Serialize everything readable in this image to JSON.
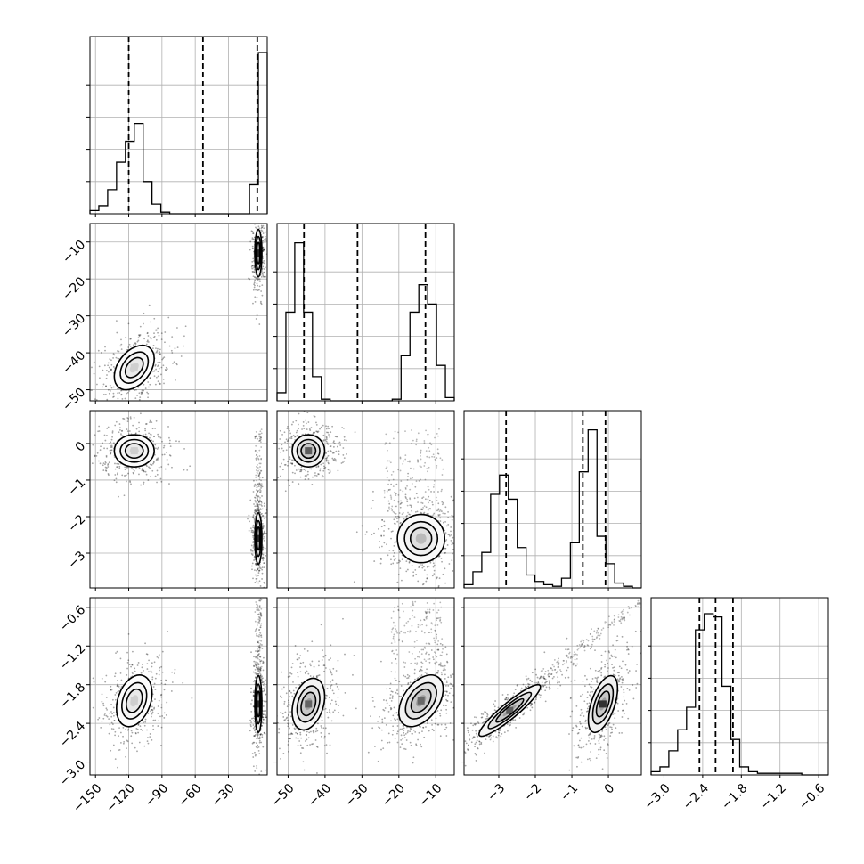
{
  "chart_data": {
    "type": "corner",
    "parameters": [
      {
        "range": [
          -155,
          5
        ],
        "ticks": [
          -150,
          -120,
          -90,
          -60,
          -30
        ],
        "tick_labels": [
          "−150",
          "−120",
          "−90",
          "−60",
          "−30"
        ],
        "quantiles": [
          -120,
          -53,
          -4
        ],
        "histogram": {
          "edges": [
            -155,
            -147,
            -139,
            -131,
            -123,
            -115,
            -107,
            -99,
            -91,
            -83,
            -75,
            -67,
            -59,
            -51,
            -43,
            -35,
            -27,
            -19,
            -11,
            -3,
            5
          ],
          "counts": [
            0.02,
            0.05,
            0.15,
            0.32,
            0.45,
            0.56,
            0.2,
            0.06,
            0.01,
            0,
            0,
            0,
            0,
            0,
            0,
            0,
            0,
            0,
            0.18,
            1.0
          ]
        }
      },
      {
        "range": [
          -53,
          -5
        ],
        "ticks": [
          -50,
          -40,
          -30,
          -20,
          -10
        ],
        "tick_labels": [
          "−50",
          "−40",
          "−30",
          "−20",
          "−10"
        ],
        "quantiles": [
          -45.7,
          -31.2,
          -12.8
        ],
        "histogram": {
          "edges": [
            -53,
            -50.6,
            -48.2,
            -45.8,
            -43.4,
            -41,
            -38.6,
            -36.2,
            -33.8,
            -31.4,
            -29,
            -26.6,
            -24.2,
            -21.8,
            -19.4,
            -17,
            -14.6,
            -12.2,
            -9.8,
            -7.4,
            -5
          ],
          "counts": [
            0.05,
            0.55,
            0.98,
            0.55,
            0.15,
            0.01,
            0,
            0,
            0,
            0,
            0,
            0,
            0,
            0.01,
            0.28,
            0.55,
            0.72,
            0.6,
            0.22,
            0.02
          ]
        }
      },
      {
        "range": [
          -3.95,
          0.9
        ],
        "ticks": [
          -3,
          -2,
          -1,
          0
        ],
        "tick_labels": [
          "−3",
          "−2",
          "−1",
          "0"
        ],
        "quantiles": [
          -2.8,
          -0.7,
          -0.08
        ],
        "histogram": {
          "edges": [
            -3.95,
            -3.7075,
            -3.465,
            -3.2225,
            -2.98,
            -2.7375,
            -2.495,
            -2.2525,
            -2.01,
            -1.7675,
            -1.525,
            -1.2825,
            -1.04,
            -0.7975,
            -0.555,
            -0.3125,
            -0.07,
            0.1725,
            0.415,
            0.6575,
            0.9
          ],
          "counts": [
            0.02,
            0.1,
            0.22,
            0.58,
            0.7,
            0.55,
            0.25,
            0.08,
            0.04,
            0.02,
            0.01,
            0.06,
            0.28,
            0.72,
            0.98,
            0.32,
            0.15,
            0.03,
            0.01,
            0
          ]
        }
      },
      {
        "range": [
          -3.2,
          -0.45
        ],
        "ticks": [
          -3.0,
          -2.4,
          -1.8,
          -1.2,
          -0.6
        ],
        "tick_labels": [
          "−3.0",
          "−2.4",
          "−1.8",
          "−1.2",
          "−0.6"
        ],
        "quantiles": [
          -2.45,
          -2.2,
          -1.93
        ],
        "histogram": {
          "edges": [
            -3.2,
            -3.0625,
            -2.925,
            -2.7875,
            -2.65,
            -2.5125,
            -2.375,
            -2.2375,
            -2.1,
            -1.9625,
            -1.825,
            -1.6875,
            -1.55,
            -1.4125,
            -1.275,
            -1.1375,
            -1.0,
            -0.8625,
            -0.725,
            -0.5875,
            -0.45
          ],
          "counts": [
            0.02,
            0.05,
            0.15,
            0.28,
            0.42,
            0.9,
            1.0,
            0.98,
            0.55,
            0.22,
            0.05,
            0.02,
            0.01,
            0.01,
            0.01,
            0.01,
            0.01,
            0,
            0,
            0
          ]
        }
      }
    ],
    "blobs": [
      {
        "row": 1,
        "col": 0,
        "cx": -115,
        "cy": -44,
        "sx": 9,
        "sy": 3,
        "rho": 0.4,
        "n": 420,
        "peak": 0.22
      },
      {
        "row": 1,
        "col": 0,
        "cx": -3,
        "cy": -13,
        "sx": 1.6,
        "sy": 3.2,
        "rho": 0.0,
        "n": 340,
        "peak": 1.0
      },
      {
        "row": 2,
        "col": 0,
        "cx": -115,
        "cy": -0.2,
        "sx": 9,
        "sy": 0.22,
        "rho": 0.0,
        "n": 420,
        "peak": 0.22
      },
      {
        "row": 2,
        "col": 0,
        "cx": -3,
        "cy": -2.6,
        "sx": 1.6,
        "sy": 0.35,
        "rho": 0.0,
        "n": 340,
        "peak": 1.0
      },
      {
        "row": 2,
        "col": 1,
        "cx": -44.5,
        "cy": -0.2,
        "sx": 2.2,
        "sy": 0.22,
        "rho": 0.0,
        "n": 420,
        "peak": 0.75
      },
      {
        "row": 2,
        "col": 1,
        "cx": -14,
        "cy": -2.6,
        "sx": 3.2,
        "sy": 0.33,
        "rho": 0.0,
        "n": 460,
        "peak": 0.32
      },
      {
        "row": 3,
        "col": 0,
        "cx": -115,
        "cy": -2.05,
        "sx": 8,
        "sy": 0.2,
        "rho": 0.3,
        "n": 420,
        "peak": 0.22
      },
      {
        "row": 3,
        "col": 0,
        "cx": -3,
        "cy": -2.1,
        "sx": 1.6,
        "sy": 0.22,
        "rho": 0.0,
        "n": 340,
        "peak": 1.0
      },
      {
        "row": 3,
        "col": 1,
        "cx": -44.5,
        "cy": -2.1,
        "sx": 2.2,
        "sy": 0.2,
        "rho": 0.3,
        "n": 420,
        "peak": 0.72
      },
      {
        "row": 3,
        "col": 1,
        "cx": -14,
        "cy": -2.05,
        "sx": 3.0,
        "sy": 0.2,
        "rho": 0.45,
        "n": 460,
        "peak": 0.7
      },
      {
        "row": 3,
        "col": 2,
        "cx": -2.7,
        "cy": -2.2,
        "sx": 0.42,
        "sy": 0.2,
        "rho": 0.92,
        "n": 460,
        "peak": 0.75
      },
      {
        "row": 3,
        "col": 2,
        "cx": -0.15,
        "cy": -2.1,
        "sx": 0.2,
        "sy": 0.22,
        "rho": 0.55,
        "n": 420,
        "peak": 0.95
      }
    ],
    "tails": [
      {
        "row": 2,
        "col": 0,
        "x": [
          -6,
          0
        ],
        "y": [
          -2.2,
          0.4
        ],
        "n": 120
      },
      {
        "row": 3,
        "col": 0,
        "x": [
          -6,
          0
        ],
        "y": [
          -1.8,
          -0.45
        ],
        "n": 130
      },
      {
        "row": 2,
        "col": 1,
        "x": [
          -24,
          -8
        ],
        "y": [
          -2.0,
          0.4
        ],
        "n": 160
      },
      {
        "row": 3,
        "col": 1,
        "x": [
          -22,
          -8
        ],
        "y": [
          -1.5,
          -0.5
        ],
        "n": 150
      },
      {
        "row": 3,
        "col": 2,
        "x": [
          -2.3,
          0.9
        ],
        "y": [
          -1.9,
          -0.5
        ],
        "n": 160,
        "line": true
      }
    ],
    "grid": true
  }
}
